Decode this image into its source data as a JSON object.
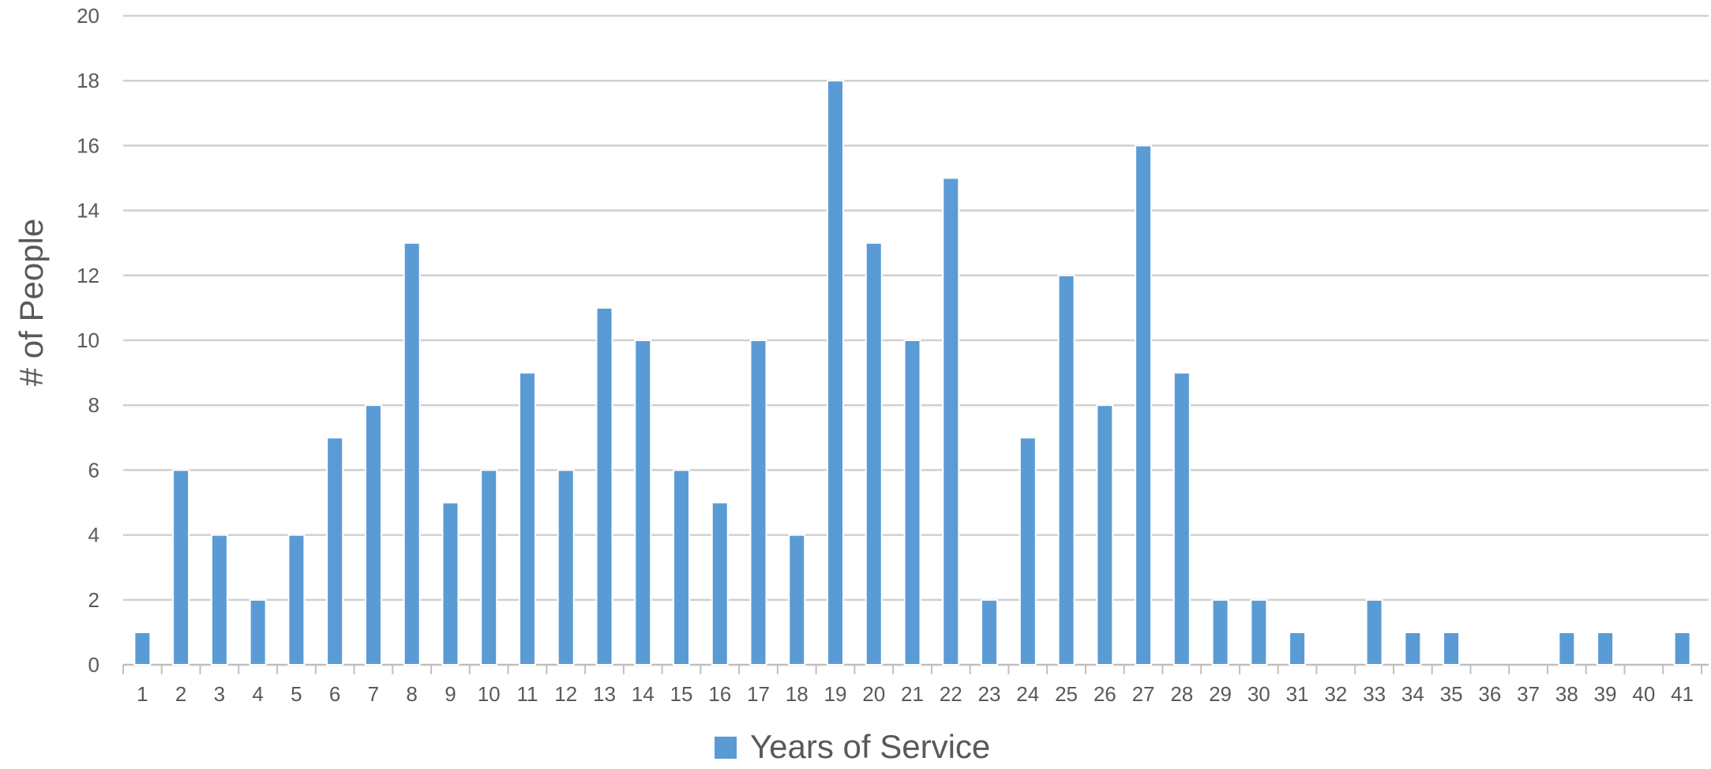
{
  "chart_data": {
    "type": "bar",
    "ylabel": "# of People",
    "xlabel": "",
    "ylim": [
      0,
      20
    ],
    "ytick_step": 2,
    "yticks": [
      "0",
      "2",
      "4",
      "6",
      "8",
      "10",
      "12",
      "14",
      "16",
      "18",
      "20"
    ],
    "grid": true,
    "legend_position": "bottom",
    "categories": [
      "1",
      "2",
      "3",
      "4",
      "5",
      "6",
      "7",
      "8",
      "9",
      "10",
      "11",
      "12",
      "13",
      "14",
      "15",
      "16",
      "17",
      "18",
      "19",
      "20",
      "21",
      "22",
      "23",
      "24",
      "25",
      "26",
      "27",
      "28",
      "29",
      "30",
      "31",
      "32",
      "33",
      "34",
      "35",
      "36",
      "37",
      "38",
      "39",
      "40",
      "41"
    ],
    "series": [
      {
        "name": "Years of Service",
        "color": "#5B9BD5",
        "values": [
          1,
          6,
          4,
          2,
          4,
          7,
          8,
          13,
          5,
          6,
          9,
          6,
          11,
          10,
          6,
          5,
          10,
          4,
          18,
          13,
          10,
          15,
          2,
          7,
          12,
          8,
          16,
          9,
          2,
          2,
          1,
          0,
          2,
          1,
          1,
          0,
          0,
          1,
          1,
          0,
          1
        ]
      }
    ]
  }
}
